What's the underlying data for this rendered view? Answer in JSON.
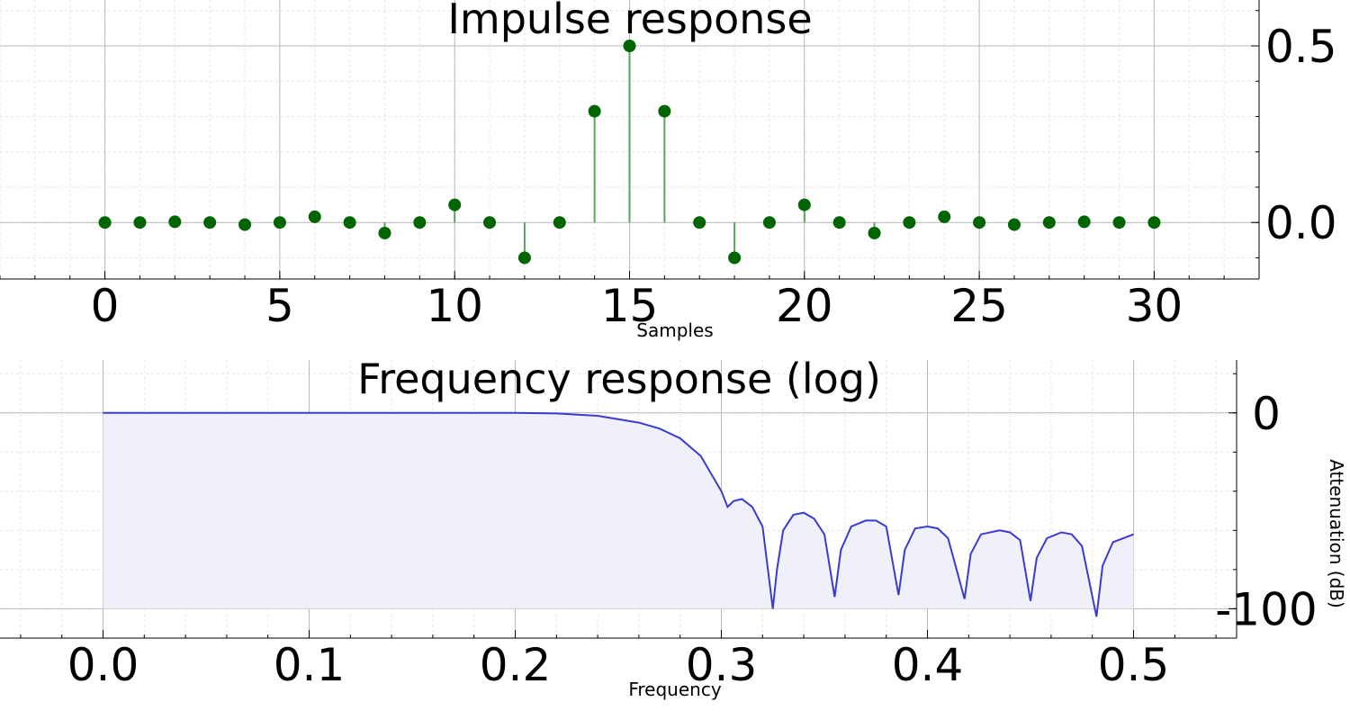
{
  "chart_data": [
    {
      "type": "stem",
      "title": "Impulse response",
      "xlabel": "Samples",
      "ylabel": "",
      "xlim": [
        -3,
        33
      ],
      "ylim": [
        -0.16,
        0.63
      ],
      "xticks": [
        0,
        5,
        10,
        15,
        20,
        25,
        30
      ],
      "xtick_labels": [
        "0",
        "5",
        "10",
        "15",
        "20",
        "25",
        "30"
      ],
      "yticks": [
        0.0,
        0.5
      ],
      "ytick_labels": [
        "0.0",
        "0.5"
      ],
      "grid": true,
      "color": "#006400",
      "stem_color": "#5aa55a",
      "series": [
        {
          "x": [
            0,
            1,
            2,
            3,
            4,
            5,
            6,
            7,
            8,
            9,
            10,
            11,
            12,
            13,
            14,
            15,
            16,
            17,
            18,
            19,
            20,
            21,
            22,
            23,
            24,
            25,
            26,
            27,
            28,
            29,
            30
          ],
          "values": [
            0,
            0,
            0.002,
            0,
            -0.006,
            0,
            0.016,
            0,
            -0.03,
            0,
            0.05,
            0,
            -0.1,
            0,
            0.315,
            0.5,
            0.315,
            0,
            -0.1,
            0,
            0.05,
            0,
            -0.03,
            0,
            0.016,
            0,
            -0.006,
            0,
            0.002,
            0,
            0
          ]
        }
      ]
    },
    {
      "type": "area",
      "title": "Frequency response (log)",
      "xlabel": "Frequency",
      "ylabel": "Attenuation (dB)",
      "xlim": [
        -0.05,
        0.55
      ],
      "ylim": [
        -115,
        27
      ],
      "xticks": [
        0.0,
        0.1,
        0.2,
        0.3,
        0.4,
        0.5
      ],
      "xtick_labels": [
        "0.0",
        "0.1",
        "0.2",
        "0.3",
        "0.4",
        "0.5"
      ],
      "yticks": [
        0,
        -100
      ],
      "ytick_labels": [
        "0",
        "-100"
      ],
      "grid": true,
      "line_color": "#3b3bd0",
      "fill_color": "#eff0f9",
      "series": [
        {
          "x": [
            0.0,
            0.05,
            0.1,
            0.15,
            0.2,
            0.22,
            0.24,
            0.26,
            0.27,
            0.28,
            0.29,
            0.3,
            0.303,
            0.306,
            0.31,
            0.315,
            0.32,
            0.325,
            0.327,
            0.33,
            0.335,
            0.34,
            0.345,
            0.35,
            0.355,
            0.358,
            0.363,
            0.37,
            0.375,
            0.38,
            0.386,
            0.389,
            0.394,
            0.4,
            0.405,
            0.41,
            0.418,
            0.421,
            0.426,
            0.435,
            0.44,
            0.445,
            0.45,
            0.453,
            0.458,
            0.465,
            0.47,
            0.475,
            0.482,
            0.485,
            0.49,
            0.5
          ],
          "values": [
            0,
            0,
            0,
            0,
            0,
            -0.3,
            -1.5,
            -5,
            -8,
            -13,
            -22,
            -40,
            -48,
            -45,
            -44,
            -48,
            -58,
            -100,
            -80,
            -60,
            -52,
            -51,
            -54,
            -62,
            -94,
            -70,
            -58,
            -55,
            -55,
            -58,
            -93,
            -70,
            -59,
            -58,
            -59,
            -64,
            -95,
            -72,
            -62,
            -60,
            -61,
            -65,
            -96,
            -74,
            -64,
            -61,
            -62,
            -68,
            -104,
            -78,
            -66,
            -62
          ]
        }
      ]
    }
  ]
}
